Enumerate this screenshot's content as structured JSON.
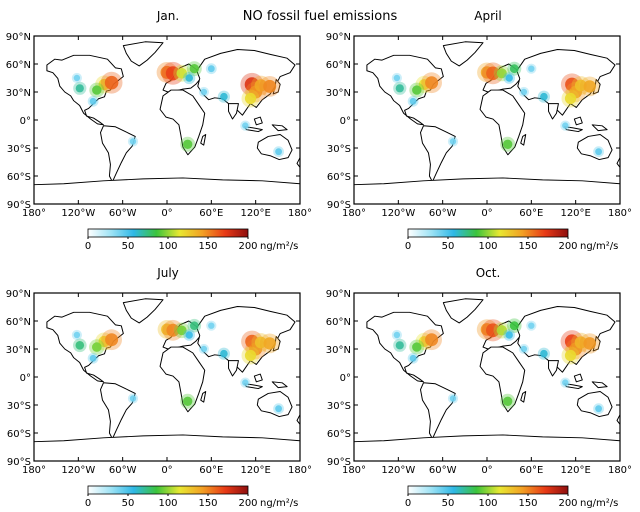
{
  "figure": {
    "title": "NO fossil fuel emissions"
  },
  "chart_data": [
    {
      "type": "heatmap",
      "title": "Jan.",
      "xlabel": "",
      "ylabel": "",
      "xlim": [
        -180,
        180
      ],
      "ylim": [
        -90,
        90
      ],
      "x_ticks": [
        "180°",
        "120°W",
        "60°W",
        "0°",
        "60°E",
        "120°E",
        "180°"
      ],
      "y_ticks": [
        "90°N",
        "60°N",
        "30°N",
        "0°",
        "30°S",
        "60°S",
        "90°S"
      ],
      "colorbar": {
        "ticks": [
          "0",
          "50",
          "100",
          "150",
          "200"
        ],
        "range": [
          0,
          200
        ],
        "unit": "ng/m²/s"
      },
      "hotspots": [
        {
          "lon": -85,
          "lat": 38,
          "value": 120
        },
        {
          "lon": -75,
          "lat": 40,
          "value": 160
        },
        {
          "lon": -95,
          "lat": 32,
          "value": 90
        },
        {
          "lon": -118,
          "lat": 34,
          "value": 70
        },
        {
          "lon": -122,
          "lat": 45,
          "value": 40
        },
        {
          "lon": -100,
          "lat": 20,
          "value": 45
        },
        {
          "lon": -46,
          "lat": -23,
          "value": 40
        },
        {
          "lon": 0,
          "lat": 51,
          "value": 150
        },
        {
          "lon": 8,
          "lat": 50,
          "value": 170
        },
        {
          "lon": 20,
          "lat": 50,
          "value": 110
        },
        {
          "lon": 37,
          "lat": 55,
          "value": 90
        },
        {
          "lon": 30,
          "lat": 45,
          "value": 60
        },
        {
          "lon": 60,
          "lat": 55,
          "value": 45
        },
        {
          "lon": 50,
          "lat": 30,
          "value": 40
        },
        {
          "lon": 77,
          "lat": 25,
          "value": 60
        },
        {
          "lon": 115,
          "lat": 38,
          "value": 175
        },
        {
          "lon": 120,
          "lat": 30,
          "value": 150
        },
        {
          "lon": 113,
          "lat": 23,
          "value": 120
        },
        {
          "lon": 127,
          "lat": 37,
          "value": 140
        },
        {
          "lon": 139,
          "lat": 36,
          "value": 150
        },
        {
          "lon": 106,
          "lat": -6,
          "value": 40
        },
        {
          "lon": 28,
          "lat": -26,
          "value": 90
        },
        {
          "lon": 151,
          "lat": -34,
          "value": 45
        }
      ]
    },
    {
      "type": "heatmap",
      "title": "April",
      "xlabel": "",
      "ylabel": "",
      "xlim": [
        -180,
        180
      ],
      "ylim": [
        -90,
        90
      ],
      "x_ticks": [
        "180°",
        "120°W",
        "60°W",
        "0°",
        "60°E",
        "120°E",
        "180°"
      ],
      "y_ticks": [
        "90°N",
        "60°N",
        "30°N",
        "0°",
        "30°S",
        "60°S",
        "90°S"
      ],
      "colorbar": {
        "ticks": [
          "0",
          "50",
          "100",
          "150",
          "200"
        ],
        "range": [
          0,
          200
        ],
        "unit": "ng/m²/s"
      },
      "hotspots": [
        {
          "lon": -85,
          "lat": 38,
          "value": 115
        },
        {
          "lon": -75,
          "lat": 40,
          "value": 150
        },
        {
          "lon": -95,
          "lat": 32,
          "value": 90
        },
        {
          "lon": -118,
          "lat": 34,
          "value": 70
        },
        {
          "lon": -122,
          "lat": 45,
          "value": 40
        },
        {
          "lon": -100,
          "lat": 20,
          "value": 45
        },
        {
          "lon": -46,
          "lat": -23,
          "value": 40
        },
        {
          "lon": 0,
          "lat": 51,
          "value": 140
        },
        {
          "lon": 8,
          "lat": 50,
          "value": 160
        },
        {
          "lon": 20,
          "lat": 50,
          "value": 100
        },
        {
          "lon": 37,
          "lat": 55,
          "value": 80
        },
        {
          "lon": 30,
          "lat": 45,
          "value": 55
        },
        {
          "lon": 60,
          "lat": 55,
          "value": 40
        },
        {
          "lon": 50,
          "lat": 30,
          "value": 40
        },
        {
          "lon": 77,
          "lat": 25,
          "value": 60
        },
        {
          "lon": 115,
          "lat": 38,
          "value": 165
        },
        {
          "lon": 120,
          "lat": 30,
          "value": 145
        },
        {
          "lon": 113,
          "lat": 23,
          "value": 120
        },
        {
          "lon": 127,
          "lat": 37,
          "value": 130
        },
        {
          "lon": 139,
          "lat": 36,
          "value": 140
        },
        {
          "lon": 106,
          "lat": -6,
          "value": 40
        },
        {
          "lon": 28,
          "lat": -26,
          "value": 90
        },
        {
          "lon": 151,
          "lat": -34,
          "value": 45
        }
      ]
    },
    {
      "type": "heatmap",
      "title": "July",
      "xlabel": "",
      "ylabel": "",
      "xlim": [
        -180,
        180
      ],
      "ylim": [
        -90,
        90
      ],
      "x_ticks": [
        "180°",
        "120°W",
        "60°W",
        "0°",
        "60°E",
        "120°E",
        "180°"
      ],
      "y_ticks": [
        "90°N",
        "60°N",
        "30°N",
        "0°",
        "30°S",
        "60°S",
        "90°S"
      ],
      "colorbar": {
        "ticks": [
          "0",
          "50",
          "100",
          "150",
          "200"
        ],
        "range": [
          0,
          200
        ],
        "unit": "ng/m²/s"
      },
      "hotspots": [
        {
          "lon": -85,
          "lat": 38,
          "value": 120
        },
        {
          "lon": -75,
          "lat": 40,
          "value": 150
        },
        {
          "lon": -95,
          "lat": 32,
          "value": 95
        },
        {
          "lon": -118,
          "lat": 34,
          "value": 75
        },
        {
          "lon": -122,
          "lat": 45,
          "value": 40
        },
        {
          "lon": -100,
          "lat": 20,
          "value": 45
        },
        {
          "lon": -46,
          "lat": -23,
          "value": 40
        },
        {
          "lon": 0,
          "lat": 51,
          "value": 130
        },
        {
          "lon": 8,
          "lat": 50,
          "value": 150
        },
        {
          "lon": 20,
          "lat": 50,
          "value": 95
        },
        {
          "lon": 37,
          "lat": 55,
          "value": 75
        },
        {
          "lon": 30,
          "lat": 45,
          "value": 55
        },
        {
          "lon": 60,
          "lat": 55,
          "value": 40
        },
        {
          "lon": 50,
          "lat": 30,
          "value": 40
        },
        {
          "lon": 77,
          "lat": 25,
          "value": 60
        },
        {
          "lon": 115,
          "lat": 38,
          "value": 160
        },
        {
          "lon": 120,
          "lat": 30,
          "value": 150
        },
        {
          "lon": 113,
          "lat": 23,
          "value": 120
        },
        {
          "lon": 127,
          "lat": 37,
          "value": 130
        },
        {
          "lon": 139,
          "lat": 36,
          "value": 140
        },
        {
          "lon": 106,
          "lat": -6,
          "value": 40
        },
        {
          "lon": 28,
          "lat": -26,
          "value": 90
        },
        {
          "lon": 151,
          "lat": -34,
          "value": 45
        }
      ]
    },
    {
      "type": "heatmap",
      "title": "Oct.",
      "xlabel": "",
      "ylabel": "",
      "xlim": [
        -180,
        180
      ],
      "ylim": [
        -90,
        90
      ],
      "x_ticks": [
        "180°",
        "120°W",
        "60°W",
        "0°",
        "60°E",
        "120°E",
        "180°"
      ],
      "y_ticks": [
        "90°N",
        "60°N",
        "30°N",
        "0°",
        "30°S",
        "60°S",
        "90°S"
      ],
      "colorbar": {
        "ticks": [
          "0",
          "50",
          "100",
          "150",
          "200"
        ],
        "range": [
          0,
          200
        ],
        "unit": "ng/m²/s"
      },
      "hotspots": [
        {
          "lon": -85,
          "lat": 38,
          "value": 115
        },
        {
          "lon": -75,
          "lat": 40,
          "value": 150
        },
        {
          "lon": -95,
          "lat": 32,
          "value": 90
        },
        {
          "lon": -118,
          "lat": 34,
          "value": 70
        },
        {
          "lon": -122,
          "lat": 45,
          "value": 40
        },
        {
          "lon": -100,
          "lat": 20,
          "value": 45
        },
        {
          "lon": -46,
          "lat": -23,
          "value": 40
        },
        {
          "lon": 0,
          "lat": 51,
          "value": 145
        },
        {
          "lon": 8,
          "lat": 50,
          "value": 165
        },
        {
          "lon": 20,
          "lat": 50,
          "value": 105
        },
        {
          "lon": 37,
          "lat": 55,
          "value": 85
        },
        {
          "lon": 30,
          "lat": 45,
          "value": 55
        },
        {
          "lon": 60,
          "lat": 55,
          "value": 40
        },
        {
          "lon": 50,
          "lat": 30,
          "value": 40
        },
        {
          "lon": 77,
          "lat": 25,
          "value": 60
        },
        {
          "lon": 115,
          "lat": 38,
          "value": 170
        },
        {
          "lon": 120,
          "lat": 30,
          "value": 150
        },
        {
          "lon": 113,
          "lat": 23,
          "value": 120
        },
        {
          "lon": 127,
          "lat": 37,
          "value": 135
        },
        {
          "lon": 139,
          "lat": 36,
          "value": 145
        },
        {
          "lon": 106,
          "lat": -6,
          "value": 40
        },
        {
          "lon": 28,
          "lat": -26,
          "value": 90
        },
        {
          "lon": 151,
          "lat": -34,
          "value": 45
        }
      ]
    }
  ],
  "colors": {
    "colorbar_stops": [
      "#ffffff",
      "#9fe3f5",
      "#2fb8e6",
      "#3cc43c",
      "#e8e832",
      "#f2a024",
      "#e83a16",
      "#8e0f0f"
    ],
    "land_fill": "#ffffff",
    "frame": "#000000"
  }
}
